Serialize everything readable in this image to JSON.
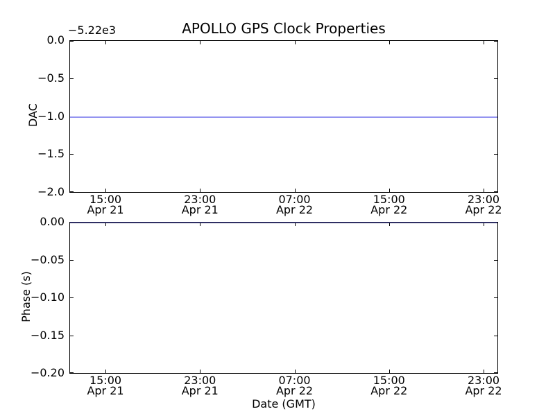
{
  "figure": {
    "title": "APOLLO GPS Clock Properties",
    "background": "#ffffff"
  },
  "colors": {
    "line": "#9494f0",
    "line_on_spine": "#2e2e63",
    "spine": "#000000",
    "text": "#000000"
  },
  "x_axis": {
    "label": "Date (GMT)",
    "ticks": [
      {
        "time": "15:00",
        "date": "Apr 21"
      },
      {
        "time": "23:00",
        "date": "Apr 21"
      },
      {
        "time": "07:00",
        "date": "Apr 22"
      },
      {
        "time": "15:00",
        "date": "Apr 22"
      },
      {
        "time": "23:00",
        "date": "Apr 22"
      }
    ]
  },
  "top_plot": {
    "ylabel": "DAC",
    "offset_text": "−5.22e3",
    "ytick_labels": [
      "0.0",
      "−0.5",
      "−1.0",
      "−1.5",
      "−2.0"
    ],
    "line_value": -1.0
  },
  "bottom_plot": {
    "ylabel": "Phase (s)",
    "ytick_labels": [
      "0.00",
      "−0.05",
      "−0.10",
      "−0.15",
      "−0.20"
    ],
    "line_value": 0.0
  },
  "chart_data": [
    {
      "type": "line",
      "title": "APOLLO GPS Clock Properties",
      "ylabel": "DAC",
      "xlabel": "",
      "y_offset_text": "−5.22e3",
      "ylim": [
        -2.0,
        0.0
      ],
      "yticks": [
        0.0,
        -0.5,
        -1.0,
        -1.5,
        -2.0
      ],
      "x_tick_labels": [
        "15:00 Apr 21",
        "23:00 Apr 21",
        "07:00 Apr 22",
        "15:00 Apr 22",
        "23:00 Apr 22"
      ],
      "grid": false,
      "legend": false,
      "series": [
        {
          "name": "DAC",
          "color": "blue",
          "description": "constant horizontal line spanning entire visible x range",
          "y_constant_displayed": -1.0,
          "y_constant_actual": -5221.0
        }
      ]
    },
    {
      "type": "line",
      "title": "",
      "ylabel": "Phase (s)",
      "xlabel": "Date (GMT)",
      "ylim": [
        -0.2,
        0.0
      ],
      "yticks": [
        0.0,
        -0.05,
        -0.1,
        -0.15,
        -0.2
      ],
      "x_tick_labels": [
        "15:00 Apr 21",
        "23:00 Apr 21",
        "07:00 Apr 22",
        "15:00 Apr 22",
        "23:00 Apr 22"
      ],
      "grid": false,
      "legend": false,
      "series": [
        {
          "name": "Phase",
          "color": "blue",
          "description": "constant line at 0.00 lying on the top axis spine, spanning entire visible x range",
          "y_constant_displayed": 0.0
        }
      ]
    }
  ]
}
